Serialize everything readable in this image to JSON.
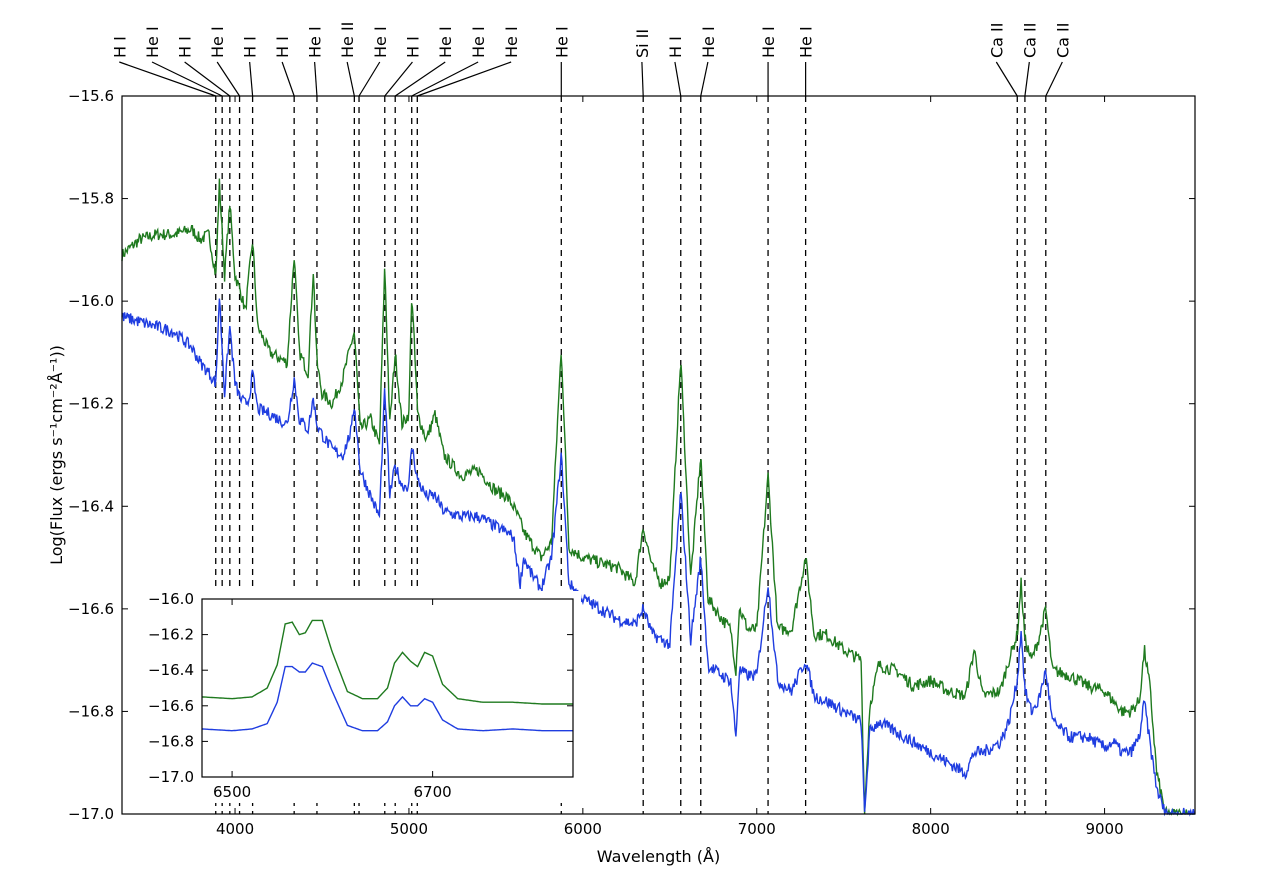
{
  "chart_data": [
    {
      "type": "line",
      "title": "",
      "xlabel": "Wavelength (Å)",
      "ylabel": "Log(Flux (ergs s⁻¹cm⁻²Å⁻¹))",
      "xlim": [
        3350,
        9520
      ],
      "ylim": [
        -17.0,
        -15.6
      ],
      "xticks": [
        4000,
        5000,
        6000,
        7000,
        8000,
        9000
      ],
      "yticks": [
        -17.0,
        -16.8,
        -16.6,
        -16.4,
        -16.2,
        -16.0,
        -15.8,
        -15.6
      ],
      "xtick_labels": [
        "4000",
        "5000",
        "6000",
        "7000",
        "8000",
        "9000"
      ],
      "ytick_labels": [
        "−17.0",
        "−16.8",
        "−16.6",
        "−16.4",
        "−16.2",
        "−16.0",
        "−15.8",
        "−15.6"
      ],
      "grid": false,
      "series": [
        {
          "color": "#1f7a1f",
          "x": [
            3350,
            3450,
            3550,
            3650,
            3750,
            3800,
            3850,
            3890,
            3910,
            3940,
            3970,
            4000,
            4030,
            4060,
            4080,
            4101,
            4130,
            4200,
            4300,
            4340,
            4370,
            4420,
            4450,
            4471,
            4500,
            4560,
            4620,
            4670,
            4686,
            4720,
            4780,
            4830,
            4861,
            4890,
            4921,
            4960,
            5000,
            5016,
            5050,
            5100,
            5150,
            5200,
            5300,
            5400,
            5500,
            5560,
            5600,
            5640,
            5660,
            5700,
            5760,
            5820,
            5876,
            5920,
            6000,
            6100,
            6200,
            6300,
            6347,
            6400,
            6450,
            6500,
            6563,
            6620,
            6678,
            6720,
            6800,
            6850,
            6880,
            6900,
            6950,
            7000,
            7065,
            7120,
            7200,
            7281,
            7330,
            7400,
            7500,
            7550,
            7600,
            7620,
            7650,
            7700,
            7800,
            7900,
            8000,
            8100,
            8200,
            8250,
            8300,
            8400,
            8450,
            8498,
            8520,
            8542,
            8580,
            8620,
            8662,
            8700,
            8800,
            8900,
            9000,
            9050,
            9100,
            9150,
            9200,
            9229,
            9260,
            9300,
            9350,
            9400,
            9450,
            9500,
            9520
          ],
          "values": [
            -15.91,
            -15.88,
            -15.87,
            -15.87,
            -15.86,
            -15.88,
            -15.87,
            -15.95,
            -15.77,
            -15.95,
            -15.81,
            -15.95,
            -15.98,
            -16.02,
            -15.95,
            -15.88,
            -16.05,
            -16.1,
            -16.12,
            -15.91,
            -16.1,
            -16.14,
            -15.94,
            -16.12,
            -16.18,
            -16.2,
            -16.15,
            -16.08,
            -16.06,
            -16.25,
            -16.23,
            -16.28,
            -15.93,
            -16.24,
            -16.1,
            -16.24,
            -16.22,
            -15.98,
            -16.22,
            -16.27,
            -16.22,
            -16.3,
            -16.34,
            -16.33,
            -16.37,
            -16.38,
            -16.4,
            -16.43,
            -16.45,
            -16.47,
            -16.5,
            -16.47,
            -16.09,
            -16.48,
            -16.5,
            -16.51,
            -16.52,
            -16.55,
            -16.44,
            -16.52,
            -16.55,
            -16.54,
            -16.11,
            -16.54,
            -16.3,
            -16.58,
            -16.62,
            -16.64,
            -16.72,
            -16.6,
            -16.64,
            -16.64,
            -16.34,
            -16.64,
            -16.64,
            -16.5,
            -16.65,
            -16.65,
            -16.68,
            -16.69,
            -16.7,
            -17.0,
            -16.79,
            -16.71,
            -16.72,
            -16.75,
            -16.74,
            -16.76,
            -16.77,
            -16.68,
            -16.77,
            -16.76,
            -16.7,
            -16.65,
            -16.55,
            -16.66,
            -16.7,
            -16.66,
            -16.6,
            -16.72,
            -16.73,
            -16.75,
            -16.76,
            -16.78,
            -16.8,
            -16.8,
            -16.78,
            -16.68,
            -16.75,
            -16.92,
            -17.0,
            -17.0,
            -17.0,
            -17.0,
            -17.0
          ],
          "noise": 0.012
        },
        {
          "color": "#1f3de0",
          "x": [
            3350,
            3450,
            3550,
            3650,
            3750,
            3800,
            3850,
            3890,
            3910,
            3940,
            3970,
            4000,
            4030,
            4060,
            4080,
            4101,
            4130,
            4200,
            4300,
            4340,
            4370,
            4420,
            4450,
            4471,
            4500,
            4560,
            4620,
            4670,
            4686,
            4720,
            4780,
            4830,
            4861,
            4890,
            4921,
            4960,
            5000,
            5016,
            5050,
            5100,
            5150,
            5200,
            5300,
            5400,
            5500,
            5560,
            5600,
            5640,
            5660,
            5700,
            5760,
            5820,
            5876,
            5920,
            6000,
            6100,
            6200,
            6300,
            6347,
            6400,
            6450,
            6500,
            6563,
            6620,
            6678,
            6720,
            6800,
            6850,
            6880,
            6900,
            6950,
            7000,
            7065,
            7120,
            7200,
            7281,
            7330,
            7400,
            7500,
            7550,
            7600,
            7620,
            7650,
            7700,
            7800,
            7900,
            8000,
            8100,
            8200,
            8250,
            8300,
            8400,
            8450,
            8498,
            8520,
            8542,
            8580,
            8620,
            8662,
            8700,
            8800,
            8900,
            9000,
            9050,
            9100,
            9150,
            9200,
            9229,
            9260,
            9300,
            9350,
            9400,
            9450,
            9500,
            9520
          ],
          "values": [
            -16.03,
            -16.04,
            -16.05,
            -16.06,
            -16.09,
            -16.12,
            -16.14,
            -16.16,
            -15.99,
            -16.18,
            -16.05,
            -16.16,
            -16.19,
            -16.2,
            -16.19,
            -16.14,
            -16.21,
            -16.22,
            -16.24,
            -16.15,
            -16.23,
            -16.25,
            -16.19,
            -16.24,
            -16.26,
            -16.29,
            -16.3,
            -16.25,
            -16.2,
            -16.33,
            -16.38,
            -16.42,
            -16.17,
            -16.38,
            -16.32,
            -16.36,
            -16.36,
            -16.28,
            -16.35,
            -16.38,
            -16.38,
            -16.41,
            -16.42,
            -16.42,
            -16.44,
            -16.45,
            -16.46,
            -16.55,
            -16.5,
            -16.53,
            -16.56,
            -16.5,
            -16.3,
            -16.55,
            -16.58,
            -16.6,
            -16.62,
            -16.63,
            -16.6,
            -16.65,
            -16.66,
            -16.67,
            -16.37,
            -16.66,
            -16.5,
            -16.71,
            -16.73,
            -16.74,
            -16.85,
            -16.72,
            -16.73,
            -16.73,
            -16.55,
            -16.74,
            -16.76,
            -16.7,
            -16.77,
            -16.78,
            -16.8,
            -16.81,
            -16.82,
            -17.0,
            -16.84,
            -16.82,
            -16.84,
            -16.86,
            -16.88,
            -16.9,
            -16.92,
            -16.88,
            -16.88,
            -16.86,
            -16.82,
            -16.74,
            -16.64,
            -16.76,
            -16.8,
            -16.78,
            -16.72,
            -16.82,
            -16.85,
            -16.85,
            -16.87,
            -16.86,
            -16.88,
            -16.88,
            -16.85,
            -16.78,
            -16.86,
            -16.95,
            -17.0,
            -17.0,
            -17.0,
            -17.0,
            -17.0
          ],
          "noise": 0.012
        }
      ],
      "line_ids": [
        {
          "label": "H I",
          "wavelength": 3889
        },
        {
          "label": "He I",
          "wavelength": 3926
        },
        {
          "label": "H I",
          "wavelength": 3970
        },
        {
          "label": "He I",
          "wavelength": 4026
        },
        {
          "label": "H I",
          "wavelength": 4101
        },
        {
          "label": "H I",
          "wavelength": 4340
        },
        {
          "label": "He I",
          "wavelength": 4471
        },
        {
          "label": "He II",
          "wavelength": 4686
        },
        {
          "label": "He I",
          "wavelength": 4713
        },
        {
          "label": "H I",
          "wavelength": 4861
        },
        {
          "label": "He I",
          "wavelength": 4921
        },
        {
          "label": "He I",
          "wavelength": 5016
        },
        {
          "label": "He I",
          "wavelength": 5048
        },
        {
          "label": "He I",
          "wavelength": 5876
        },
        {
          "label": "Si II",
          "wavelength": 6347
        },
        {
          "label": "H I",
          "wavelength": 6563
        },
        {
          "label": "He I",
          "wavelength": 6678
        },
        {
          "label": "He I",
          "wavelength": 7065
        },
        {
          "label": "He I",
          "wavelength": 7281
        },
        {
          "label": "Ca II",
          "wavelength": 8498
        },
        {
          "label": "Ca II",
          "wavelength": 8542
        },
        {
          "label": "Ca II",
          "wavelength": 8662
        }
      ]
    },
    {
      "type": "line",
      "title": "",
      "xlim": [
        6470,
        6840
      ],
      "ylim": [
        -17.0,
        -16.0
      ],
      "xticks": [
        6500,
        6700
      ],
      "yticks": [
        -17.0,
        -16.8,
        -16.6,
        -16.4,
        -16.2,
        -16.0
      ],
      "xtick_labels": [
        "6500",
        "6700"
      ],
      "ytick_labels": [
        "−17.0",
        "−16.8",
        "−16.6",
        "−16.4",
        "−16.2",
        "−16.0"
      ],
      "grid": false,
      "series": [
        {
          "color": "#1f7a1f",
          "x": [
            6470,
            6500,
            6520,
            6535,
            6545,
            6553,
            6560,
            6567,
            6573,
            6580,
            6590,
            6600,
            6615,
            6630,
            6645,
            6655,
            6662,
            6670,
            6678,
            6685,
            6692,
            6700,
            6710,
            6725,
            6750,
            6780,
            6810,
            6840
          ],
          "values": [
            -16.55,
            -16.56,
            -16.55,
            -16.5,
            -16.37,
            -16.14,
            -16.13,
            -16.2,
            -16.19,
            -16.12,
            -16.12,
            -16.3,
            -16.52,
            -16.56,
            -16.56,
            -16.5,
            -16.36,
            -16.3,
            -16.35,
            -16.38,
            -16.3,
            -16.32,
            -16.48,
            -16.56,
            -16.58,
            -16.58,
            -16.59,
            -16.59
          ],
          "noise": 0.0
        },
        {
          "color": "#1f3de0",
          "x": [
            6470,
            6500,
            6520,
            6535,
            6545,
            6553,
            6560,
            6567,
            6573,
            6580,
            6590,
            6600,
            6615,
            6630,
            6645,
            6655,
            6662,
            6670,
            6678,
            6685,
            6692,
            6700,
            6710,
            6725,
            6750,
            6780,
            6810,
            6840
          ],
          "values": [
            -16.73,
            -16.74,
            -16.73,
            -16.7,
            -16.58,
            -16.38,
            -16.38,
            -16.41,
            -16.41,
            -16.36,
            -16.38,
            -16.52,
            -16.71,
            -16.74,
            -16.74,
            -16.69,
            -16.6,
            -16.55,
            -16.6,
            -16.6,
            -16.56,
            -16.58,
            -16.68,
            -16.73,
            -16.74,
            -16.73,
            -16.74,
            -16.74
          ],
          "noise": 0.0
        }
      ]
    }
  ]
}
